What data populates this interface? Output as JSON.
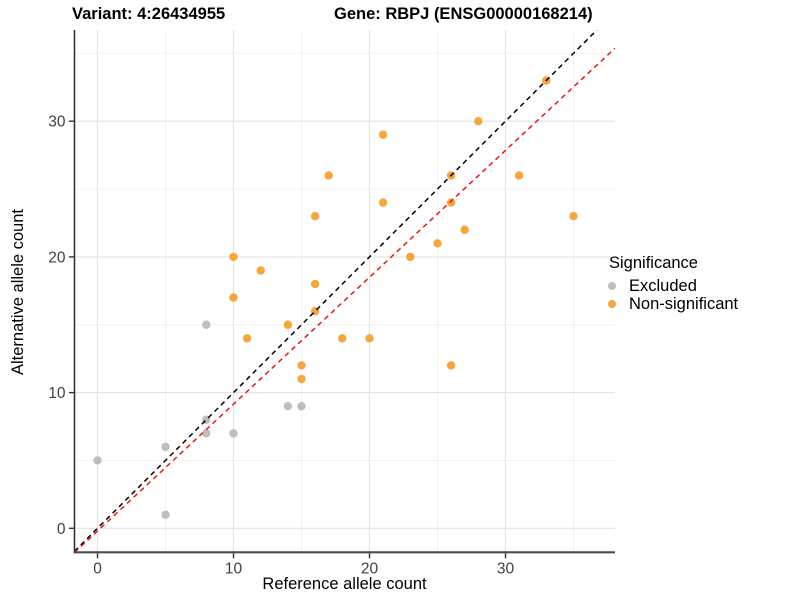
{
  "titles": {
    "variant": "Variant: 4:26434955",
    "gene": "Gene: RBPJ (ENSG00000168214)"
  },
  "chart_data": {
    "type": "scatter",
    "xlabel": "Reference allele count",
    "ylabel": "Alternative allele count",
    "x_ticks": [
      0,
      10,
      20,
      30
    ],
    "y_ticks": [
      0,
      10,
      20,
      30
    ],
    "minor_gridlines": {
      "x": [
        5,
        15,
        25,
        35
      ],
      "y": [
        5,
        15,
        25,
        35
      ]
    },
    "xlim": [
      -1.7,
      38.05
    ],
    "ylim": [
      -1.75,
      36.72
    ],
    "grid": "major+minor",
    "legend": {
      "title": "Significance",
      "position": "right",
      "items": [
        {
          "label": "Excluded",
          "color": "#BEBEBE"
        },
        {
          "label": "Non-significant",
          "color": "#F7A63B"
        }
      ]
    },
    "series": [
      {
        "name": "Excluded",
        "color": "#BEBEBE",
        "points": [
          [
            0,
            5
          ],
          [
            5,
            1
          ],
          [
            5,
            6
          ],
          [
            8,
            7
          ],
          [
            8,
            8
          ],
          [
            8,
            15
          ],
          [
            10,
            7
          ],
          [
            14,
            9
          ],
          [
            15,
            9
          ]
        ]
      },
      {
        "name": "Non-significant",
        "color": "#F7A63B",
        "points": [
          [
            10,
            17
          ],
          [
            10,
            20
          ],
          [
            11,
            14
          ],
          [
            12,
            19
          ],
          [
            14,
            15
          ],
          [
            15,
            11
          ],
          [
            15,
            12
          ],
          [
            16,
            16
          ],
          [
            16,
            18
          ],
          [
            16,
            23
          ],
          [
            17,
            26
          ],
          [
            18,
            14
          ],
          [
            20,
            14
          ],
          [
            21,
            24
          ],
          [
            21,
            29
          ],
          [
            23,
            20
          ],
          [
            25,
            21
          ],
          [
            26,
            12
          ],
          [
            26,
            24
          ],
          [
            26,
            26
          ],
          [
            27,
            22
          ],
          [
            28,
            30
          ],
          [
            31,
            26
          ],
          [
            33,
            33
          ],
          [
            35,
            23
          ]
        ]
      }
    ],
    "lines": [
      {
        "name": "identity-line",
        "style": "dashed",
        "color": "#000000",
        "slope": 1,
        "intercept": 0
      },
      {
        "name": "fit-line",
        "style": "dashed",
        "color": "#F01414",
        "slope": 0.935,
        "intercept": -0.2
      }
    ],
    "style_colors": {
      "major_grid": "#E3E3E3",
      "minor_grid": "#F0F0F0",
      "axis_line_left": "#2A2A2A",
      "axis_line_bottom": "#4D4D4D",
      "tick": "#333333",
      "tick_label": "#404040"
    }
  }
}
